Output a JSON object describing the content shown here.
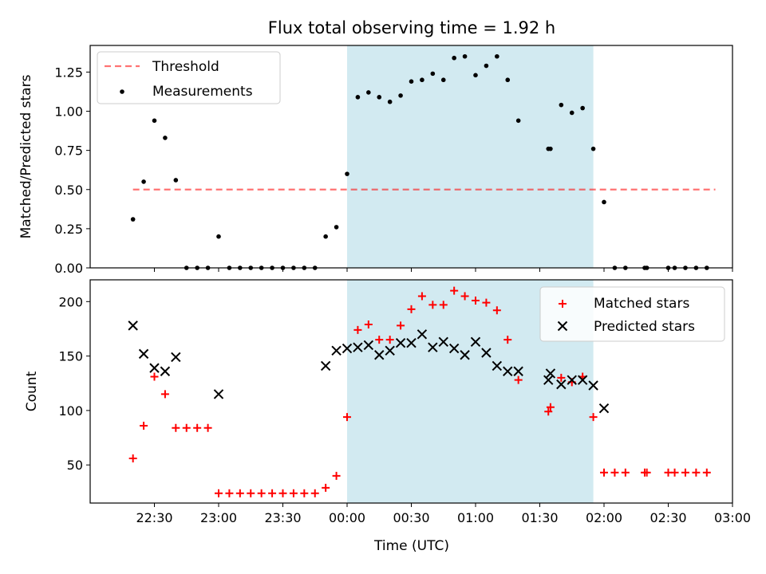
{
  "figure": {
    "title": "Flux total observing time = 1.92 h",
    "xlabel": "Time (UTC)"
  },
  "colors": {
    "shade": "#add8e6",
    "threshold": "#ff0000",
    "measurement": "#000000",
    "matched": "#ff0000",
    "predicted": "#000000"
  },
  "chart_data": [
    {
      "type": "scatter",
      "ylabel": "Matched/Predicted stars",
      "xlim_hours": [
        22.0,
        27.0
      ],
      "ylim": [
        0,
        1.42
      ],
      "x_ticks": [
        "22:30",
        "23:00",
        "23:30",
        "00:00",
        "00:30",
        "01:00",
        "01:30",
        "02:00",
        "02:30",
        "03:00"
      ],
      "y_ticks": [
        "0.00",
        "0.25",
        "0.50",
        "0.75",
        "1.00",
        "1.25"
      ],
      "y_tick_values": [
        0,
        0.25,
        0.5,
        0.75,
        1.0,
        1.25
      ],
      "shaded_span": [
        "00:00",
        "01:55"
      ],
      "grid": false,
      "legend_placement": "top-left",
      "threshold": {
        "name": "Threshold",
        "y": 0.5,
        "x_range": [
          "22:20",
          "02:52"
        ]
      },
      "series": [
        {
          "name": "Measurements",
          "x": [
            "22:20",
            "22:25",
            "22:30",
            "22:35",
            "22:40",
            "22:45",
            "22:50",
            "22:55",
            "23:00",
            "23:05",
            "23:10",
            "23:15",
            "23:20",
            "23:25",
            "23:30",
            "23:35",
            "23:40",
            "23:45",
            "23:50",
            "23:55",
            "00:00",
            "00:05",
            "00:10",
            "00:15",
            "00:20",
            "00:25",
            "00:30",
            "00:35",
            "00:40",
            "00:45",
            "00:50",
            "00:55",
            "01:00",
            "01:05",
            "01:10",
            "01:15",
            "01:20",
            "01:34",
            "01:35",
            "01:40",
            "01:45",
            "01:50",
            "01:55",
            "02:00",
            "02:05",
            "02:10",
            "02:19",
            "02:20",
            "02:30",
            "02:33",
            "02:38",
            "02:43",
            "02:48"
          ],
          "y": [
            0.31,
            0.55,
            0.94,
            0.83,
            0.56,
            0.0,
            0.0,
            0.0,
            0.2,
            0.0,
            0.0,
            0.0,
            0.0,
            0.0,
            0.0,
            0.0,
            0.0,
            0.0,
            0.2,
            0.26,
            0.6,
            1.09,
            1.12,
            1.09,
            1.06,
            1.1,
            1.19,
            1.2,
            1.24,
            1.2,
            1.34,
            1.35,
            1.23,
            1.29,
            1.35,
            1.2,
            0.94,
            0.76,
            0.76,
            1.04,
            0.99,
            1.02,
            0.76,
            0.42,
            0.0,
            0.0,
            0.0,
            0.0,
            0.0,
            0.0,
            0.0,
            0.0,
            0.0
          ]
        }
      ]
    },
    {
      "type": "scatter",
      "ylabel": "Count",
      "xlim_hours": [
        22.0,
        27.0
      ],
      "ylim": [
        15,
        220
      ],
      "x_ticks": [
        "22:30",
        "23:00",
        "23:30",
        "00:00",
        "00:30",
        "01:00",
        "01:30",
        "02:00",
        "02:30",
        "03:00"
      ],
      "y_ticks": [
        "50",
        "100",
        "150",
        "200"
      ],
      "y_tick_values": [
        50,
        100,
        150,
        200
      ],
      "shaded_span": [
        "00:00",
        "01:55"
      ],
      "grid": false,
      "legend_placement": "top-right",
      "series": [
        {
          "name": "Matched stars",
          "marker": "plus",
          "x": [
            "22:20",
            "22:25",
            "22:30",
            "22:35",
            "22:40",
            "22:45",
            "22:50",
            "22:55",
            "23:00",
            "23:05",
            "23:10",
            "23:15",
            "23:20",
            "23:25",
            "23:30",
            "23:35",
            "23:40",
            "23:45",
            "23:50",
            "23:55",
            "00:00",
            "00:05",
            "00:10",
            "00:15",
            "00:20",
            "00:25",
            "00:30",
            "00:35",
            "00:40",
            "00:45",
            "00:50",
            "00:55",
            "01:00",
            "01:05",
            "01:10",
            "01:15",
            "01:20",
            "01:34",
            "01:35",
            "01:40",
            "01:45",
            "01:50",
            "01:55",
            "02:00",
            "02:05",
            "02:10",
            "02:19",
            "02:20",
            "02:30",
            "02:33",
            "02:38",
            "02:43",
            "02:48"
          ],
          "y": [
            56,
            86,
            131,
            115,
            84,
            84,
            84,
            84,
            24,
            24,
            24,
            24,
            24,
            24,
            24,
            24,
            24,
            24,
            29,
            40,
            94,
            174,
            179,
            165,
            165,
            178,
            193,
            205,
            197,
            197,
            210,
            205,
            201,
            199,
            192,
            165,
            128,
            99,
            103,
            130,
            126,
            131,
            94,
            43,
            43,
            43,
            43,
            43,
            43,
            43,
            43,
            43,
            43
          ]
        },
        {
          "name": "Predicted stars",
          "marker": "x",
          "x": [
            "22:20",
            "22:25",
            "22:30",
            "22:35",
            "22:40",
            "23:00",
            "23:50",
            "23:55",
            "00:00",
            "00:05",
            "00:10",
            "00:15",
            "00:20",
            "00:25",
            "00:30",
            "00:35",
            "00:40",
            "00:45",
            "00:50",
            "00:55",
            "01:00",
            "01:05",
            "01:10",
            "01:15",
            "01:20",
            "01:34",
            "01:35",
            "01:40",
            "01:45",
            "01:50",
            "01:55",
            "02:00"
          ],
          "y": [
            178,
            152,
            139,
            136,
            149,
            115,
            141,
            155,
            157,
            158,
            160,
            151,
            155,
            162,
            162,
            170,
            158,
            163,
            157,
            151,
            163,
            153,
            141,
            136,
            136,
            128,
            134,
            124,
            128,
            128,
            123,
            102
          ]
        }
      ]
    }
  ]
}
